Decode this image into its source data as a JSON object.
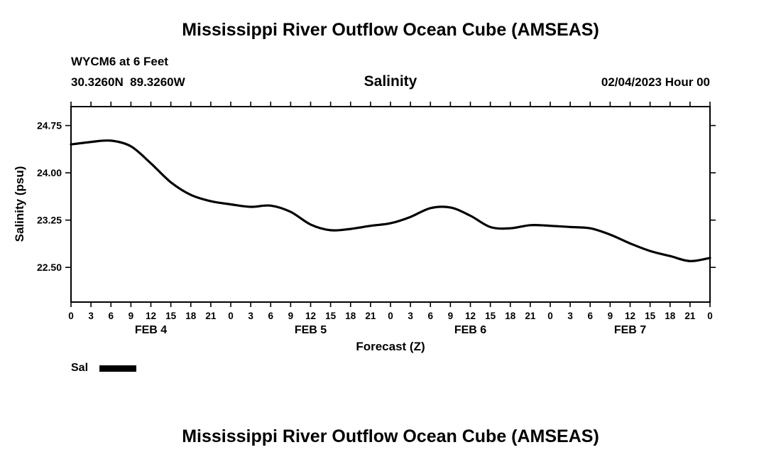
{
  "header": {
    "title": "Mississippi River Outflow Ocean Cube (AMSEAS)",
    "station": "WYCM6 at 6 Feet",
    "coordinates": "30.3260N  89.3260W",
    "chart_title": "Salinity",
    "datetime": "02/04/2023 Hour 00"
  },
  "legend": {
    "label": "Sal"
  },
  "footer": {
    "title": "Mississippi River Outflow Ocean Cube (AMSEAS)"
  },
  "chart_data": {
    "type": "line",
    "title": "Salinity",
    "xlabel": "Forecast (Z)",
    "ylabel": "Salinity (psu)",
    "xlim": [
      0,
      96
    ],
    "ylim": [
      21.95,
      25.05
    ],
    "grid": false,
    "legend_position": "bottom-left",
    "yticks": [
      22.5,
      23.25,
      24.0,
      24.75
    ],
    "ytick_labels": [
      "22.50",
      "23.25",
      "24.00",
      "24.75"
    ],
    "xticks": [
      0,
      3,
      6,
      9,
      12,
      15,
      18,
      21,
      24,
      27,
      30,
      33,
      36,
      39,
      42,
      45,
      48,
      51,
      54,
      57,
      60,
      63,
      66,
      69,
      72,
      75,
      78,
      81,
      84,
      87,
      90,
      93,
      96
    ],
    "xtick_labels": [
      "0",
      "3",
      "6",
      "9",
      "12",
      "15",
      "18",
      "21",
      "0",
      "3",
      "6",
      "9",
      "12",
      "15",
      "18",
      "21",
      "0",
      "3",
      "6",
      "9",
      "12",
      "15",
      "18",
      "21",
      "0",
      "3",
      "6",
      "9",
      "12",
      "15",
      "18",
      "21",
      "0"
    ],
    "day_labels": [
      {
        "label": "FEB 4",
        "x": 12
      },
      {
        "label": "FEB 5",
        "x": 36
      },
      {
        "label": "FEB 6",
        "x": 60
      },
      {
        "label": "FEB 7",
        "x": 84
      }
    ],
    "series": [
      {
        "name": "Sal",
        "color": "#000000",
        "x": [
          0,
          3,
          6,
          9,
          12,
          15,
          18,
          21,
          24,
          27,
          30,
          33,
          36,
          39,
          42,
          45,
          48,
          51,
          54,
          57,
          60,
          63,
          66,
          69,
          72,
          75,
          78,
          81,
          84,
          87,
          90,
          93,
          96
        ],
        "y": [
          24.45,
          24.49,
          24.51,
          24.42,
          24.15,
          23.85,
          23.65,
          23.55,
          23.5,
          23.46,
          23.48,
          23.38,
          23.18,
          23.09,
          23.11,
          23.16,
          23.2,
          23.3,
          23.44,
          23.45,
          23.32,
          23.14,
          23.12,
          23.17,
          23.16,
          23.14,
          23.12,
          23.02,
          22.88,
          22.76,
          22.68,
          22.6,
          22.65
        ]
      }
    ]
  }
}
